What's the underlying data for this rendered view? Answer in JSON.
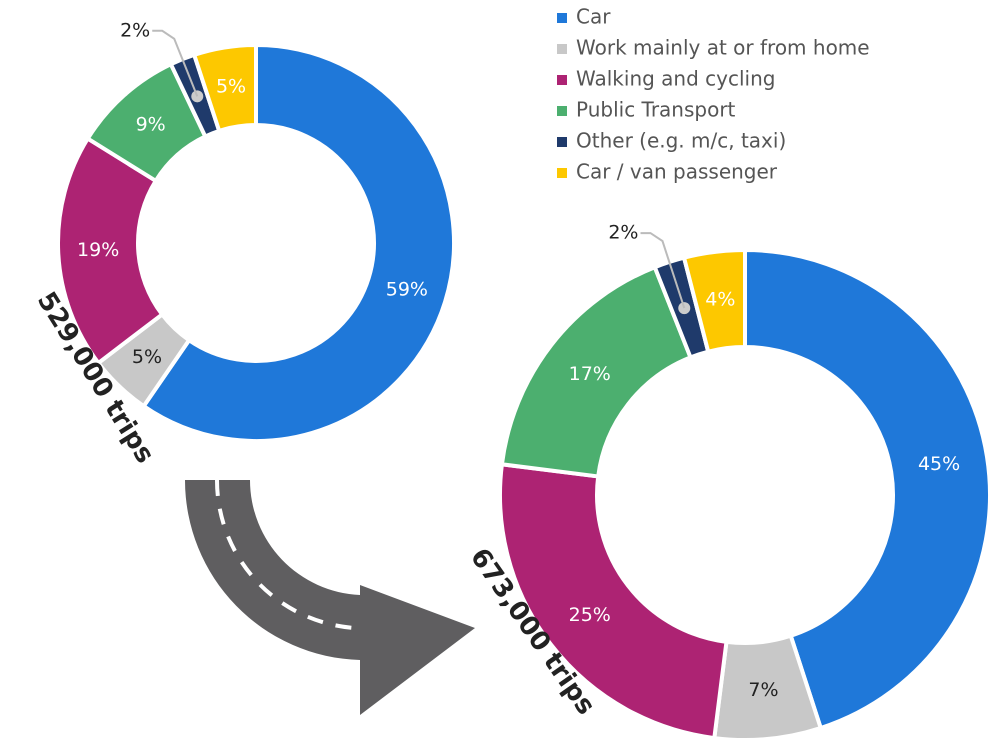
{
  "chart_data": {
    "type": "donut",
    "categories": [
      "Car",
      "Work mainly at or from home",
      "Walking and cycling",
      "Public Transport",
      "Other (e.g. m/c, taxi)",
      "Car / van passenger"
    ],
    "colors": [
      "#1f78d9",
      "#c8c8c8",
      "#ad2373",
      "#4caf6f",
      "#1f3a6b",
      "#fdc800"
    ],
    "series": [
      {
        "values": [
          59,
          5,
          19,
          9,
          2,
          5
        ],
        "value_labels": [
          "59%",
          "5%",
          "19%",
          "9%",
          "2%",
          "5%"
        ],
        "annotation": "529,000 trips"
      },
      {
        "values": [
          45,
          7,
          25,
          17,
          2,
          4
        ],
        "value_labels": [
          "45%",
          "7%",
          "25%",
          "17%",
          "2%",
          "4%"
        ],
        "annotation": "673,000 trips"
      }
    ]
  }
}
